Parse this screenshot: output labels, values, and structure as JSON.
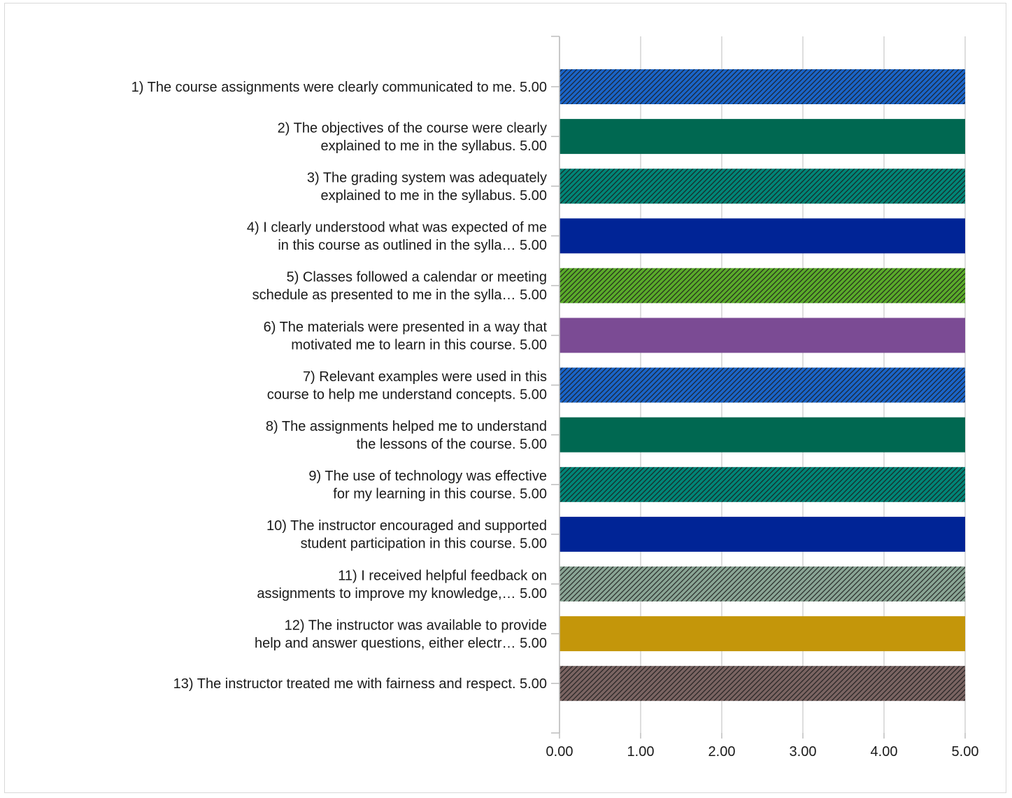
{
  "chart_data": {
    "type": "bar",
    "orientation": "horizontal",
    "title": "",
    "xlabel": "",
    "ylabel": "",
    "xlim": [
      0,
      5
    ],
    "grid": true,
    "legend": "none",
    "ticks": [
      "0.00",
      "1.00",
      "2.00",
      "3.00",
      "4.00",
      "5.00"
    ],
    "categories": [
      [
        "1) The course assignments were clearly communicated to me. 5.00"
      ],
      [
        "2) The objectives of the course were clearly",
        "explained to me in the syllabus. 5.00"
      ],
      [
        "3) The grading system was adequately",
        "explained to me in the syllabus. 5.00"
      ],
      [
        "4) I clearly understood what was expected of me",
        "in this course as outlined in the sylla… 5.00"
      ],
      [
        "5) Classes followed a calendar or meeting",
        "schedule as presented to me in the sylla… 5.00"
      ],
      [
        "6) The materials were presented in a way that",
        "motivated me to learn in this course. 5.00"
      ],
      [
        "7) Relevant examples were used in this",
        "course to help me understand concepts. 5.00"
      ],
      [
        "8) The assignments helped me to understand",
        "the lessons of the course. 5.00"
      ],
      [
        "9) The use of technology was effective",
        "for my learning in this course. 5.00"
      ],
      [
        "10) The instructor encouraged and supported",
        "student participation in this course. 5.00"
      ],
      [
        "11) I received helpful feedback on",
        "assignments to improve my knowledge,… 5.00"
      ],
      [
        "12) The instructor was available to provide",
        "help and answer questions, either electr… 5.00"
      ],
      [
        "13) The instructor treated me with fairness and respect. 5.00"
      ]
    ],
    "values": [
      5,
      5,
      5,
      5,
      5,
      5,
      5,
      5,
      5,
      5,
      5,
      5,
      5
    ],
    "bar_styles": [
      {
        "color": "#1a64c8",
        "hatch": true
      },
      {
        "color": "#006851",
        "hatch": false
      },
      {
        "color": "#008577",
        "hatch": true
      },
      {
        "color": "#002496",
        "hatch": false
      },
      {
        "color": "#5aab2a",
        "hatch": true
      },
      {
        "color": "#7b4b94",
        "hatch": false
      },
      {
        "color": "#1a64c8",
        "hatch": true
      },
      {
        "color": "#006851",
        "hatch": false
      },
      {
        "color": "#008577",
        "hatch": true
      },
      {
        "color": "#002496",
        "hatch": false
      },
      {
        "color": "#8aa595",
        "hatch": true
      },
      {
        "color": "#c4960a",
        "hatch": false
      },
      {
        "color": "#7a6462",
        "hatch": true
      }
    ]
  }
}
